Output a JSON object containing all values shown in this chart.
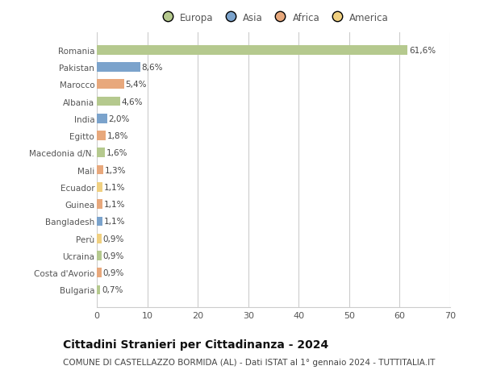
{
  "countries": [
    "Romania",
    "Pakistan",
    "Marocco",
    "Albania",
    "India",
    "Egitto",
    "Macedonia d/N.",
    "Mali",
    "Ecuador",
    "Guinea",
    "Bangladesh",
    "Perù",
    "Ucraina",
    "Costa d'Avorio",
    "Bulgaria"
  ],
  "values": [
    61.6,
    8.6,
    5.4,
    4.6,
    2.0,
    1.8,
    1.6,
    1.3,
    1.1,
    1.1,
    1.1,
    0.9,
    0.9,
    0.9,
    0.7
  ],
  "labels": [
    "61,6%",
    "8,6%",
    "5,4%",
    "4,6%",
    "2,0%",
    "1,8%",
    "1,6%",
    "1,3%",
    "1,1%",
    "1,1%",
    "1,1%",
    "0,9%",
    "0,9%",
    "0,9%",
    "0,7%"
  ],
  "continents": [
    "Europa",
    "Asia",
    "Africa",
    "Europa",
    "Asia",
    "Africa",
    "Europa",
    "Africa",
    "America",
    "Africa",
    "Asia",
    "America",
    "Europa",
    "Africa",
    "Europa"
  ],
  "continent_colors": {
    "Europa": "#b5c98e",
    "Asia": "#7ba3cc",
    "Africa": "#e8a87c",
    "America": "#f0d080"
  },
  "xlim": [
    0,
    70
  ],
  "xticks": [
    0,
    10,
    20,
    30,
    40,
    50,
    60,
    70
  ],
  "title": "Cittadini Stranieri per Cittadinanza - 2024",
  "subtitle": "COMUNE DI CASTELLAZZO BORMIDA (AL) - Dati ISTAT al 1° gennaio 2024 - TUTTITALIA.IT",
  "background_color": "#ffffff",
  "grid_color": "#cccccc",
  "bar_height": 0.55,
  "title_fontsize": 10,
  "subtitle_fontsize": 7.5,
  "label_fontsize": 7.5,
  "ytick_fontsize": 7.5,
  "xtick_fontsize": 8,
  "legend_fontsize": 8.5
}
